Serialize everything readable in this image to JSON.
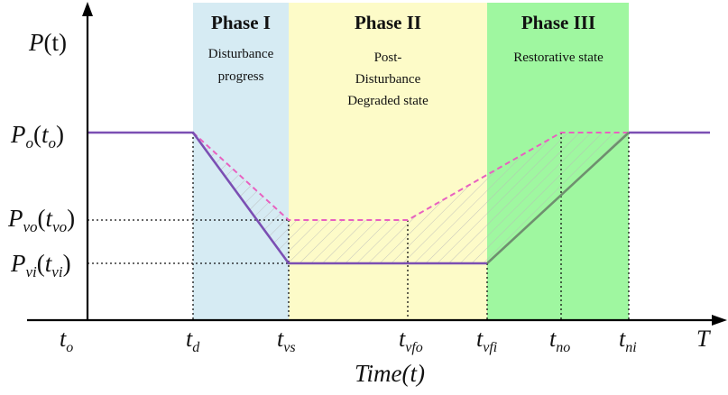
{
  "y_axis_label": {
    "main": "P",
    "paren": "(t)"
  },
  "x_axis_label": "Time(t)",
  "y_levels": [
    {
      "main": "P",
      "sub": "o",
      "arg_main": "t",
      "arg_sub": "o"
    },
    {
      "main": "P",
      "sub": "vo",
      "arg_main": "t",
      "arg_sub": "vo"
    },
    {
      "main": "P",
      "sub": "vi",
      "arg_main": "t",
      "arg_sub": "vi"
    }
  ],
  "x_ticks": [
    {
      "main": "t",
      "sub": "o"
    },
    {
      "main": "t",
      "sub": "d"
    },
    {
      "main": "t",
      "sub": "vs"
    },
    {
      "main": "t",
      "sub": "vfo"
    },
    {
      "main": "t",
      "sub": "vfi"
    },
    {
      "main": "t",
      "sub": "no"
    },
    {
      "main": "t",
      "sub": "ni"
    },
    {
      "main": "T",
      "sub": ""
    }
  ],
  "phases": [
    {
      "title": "Phase I",
      "lines": [
        "Disturbance",
        "progress"
      ],
      "color": "#d6ebf3"
    },
    {
      "title": "Phase II",
      "lines": [
        "Post-",
        "Disturbance",
        "Degraded state"
      ],
      "color": "#fdfbc8"
    },
    {
      "title": "Phase III",
      "lines": [
        "Restorative state"
      ],
      "color": "#9ff7a0"
    }
  ],
  "curves": {
    "solid_color": "#7b4fb3",
    "recovery_color": "#6f8f6f",
    "dashed_color": "#e860c0"
  }
}
